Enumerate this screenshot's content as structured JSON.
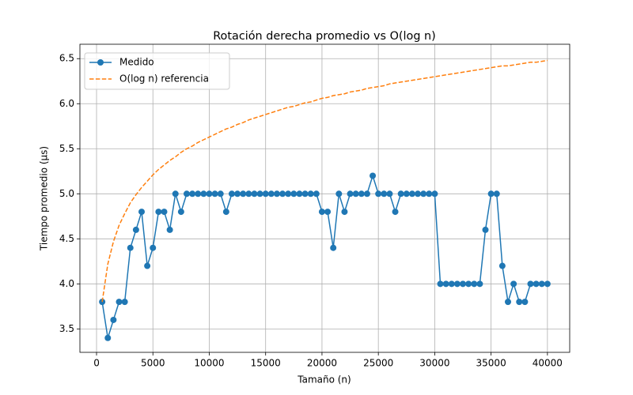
{
  "chart_data": {
    "type": "line",
    "title": "Rotación derecha promedio vs O(log n)",
    "x_label": "Tamaño (n)",
    "y_label": "Tiempo promedio (µs)",
    "x": [
      500,
      1000,
      1500,
      2000,
      2500,
      3000,
      3500,
      4000,
      4500,
      5000,
      5500,
      6000,
      6500,
      7000,
      7500,
      8000,
      8500,
      9000,
      9500,
      10000,
      10500,
      11000,
      11500,
      12000,
      12500,
      13000,
      13500,
      14000,
      14500,
      15000,
      15500,
      16000,
      16500,
      17000,
      17500,
      18000,
      18500,
      19000,
      19500,
      20000,
      20500,
      21000,
      21500,
      22000,
      22500,
      23000,
      23500,
      24000,
      24500,
      25000,
      25500,
      26000,
      26500,
      27000,
      27500,
      28000,
      28500,
      29000,
      29500,
      30000,
      30500,
      31000,
      31500,
      32000,
      32500,
      33000,
      33500,
      34000,
      34500,
      35000,
      35500,
      36000,
      36500,
      37000,
      37500,
      38000,
      38500,
      39000,
      39500,
      40000
    ],
    "series": [
      {
        "name": "Medido",
        "color": "#1f77b4",
        "style": "solid",
        "marker": true,
        "values": [
          3.8,
          3.4,
          3.6,
          3.8,
          3.8,
          4.4,
          4.6,
          4.8,
          4.2,
          4.4,
          4.8,
          4.8,
          4.6,
          5.0,
          4.8,
          5.0,
          5.0,
          5.0,
          5.0,
          5.0,
          5.0,
          5.0,
          4.8,
          5.0,
          5.0,
          5.0,
          5.0,
          5.0,
          5.0,
          5.0,
          5.0,
          5.0,
          5.0,
          5.0,
          5.0,
          5.0,
          5.0,
          5.0,
          5.0,
          4.8,
          4.8,
          4.4,
          5.0,
          4.8,
          5.0,
          5.0,
          5.0,
          5.0,
          5.2,
          5.0,
          5.0,
          5.0,
          4.8,
          5.0,
          5.0,
          5.0,
          5.0,
          5.0,
          5.0,
          5.0,
          4.0,
          4.0,
          4.0,
          4.0,
          4.0,
          4.0,
          4.0,
          4.0,
          4.6,
          5.0,
          5.0,
          4.2,
          3.8,
          4.0,
          3.8,
          3.8,
          4.0,
          4.0,
          4.0,
          4.0
        ]
      },
      {
        "name": "O(log n) referencia",
        "color": "#ff7f0e",
        "style": "dashed",
        "marker": false,
        "values": [
          3.8,
          4.22,
          4.47,
          4.65,
          4.78,
          4.9,
          4.99,
          5.07,
          5.14,
          5.21,
          5.27,
          5.32,
          5.37,
          5.41,
          5.46,
          5.5,
          5.53,
          5.57,
          5.6,
          5.63,
          5.66,
          5.69,
          5.72,
          5.74,
          5.77,
          5.79,
          5.82,
          5.84,
          5.86,
          5.88,
          5.9,
          5.92,
          5.94,
          5.96,
          5.97,
          5.99,
          6.01,
          6.02,
          6.04,
          6.06,
          6.07,
          6.09,
          6.1,
          6.11,
          6.13,
          6.14,
          6.15,
          6.17,
          6.18,
          6.19,
          6.2,
          6.22,
          6.23,
          6.24,
          6.25,
          6.26,
          6.27,
          6.28,
          6.29,
          6.3,
          6.31,
          6.32,
          6.33,
          6.34,
          6.35,
          6.36,
          6.37,
          6.38,
          6.39,
          6.4,
          6.41,
          6.42,
          6.42,
          6.43,
          6.44,
          6.45,
          6.46,
          6.46,
          6.47,
          6.48
        ]
      }
    ],
    "xlim": [
      -1475,
      41975
    ],
    "ylim": [
      3.24,
      6.66
    ],
    "xticks": [
      0,
      5000,
      10000,
      15000,
      20000,
      25000,
      30000,
      35000,
      40000
    ],
    "yticks": [
      3.5,
      {
        "value": 4,
        "label": "4.0"
      },
      4.5,
      {
        "value": 5,
        "label": "5.0"
      },
      5.5,
      {
        "value": 6,
        "label": "6.0"
      },
      6.5
    ],
    "grid": true,
    "legend": "upper-left"
  }
}
